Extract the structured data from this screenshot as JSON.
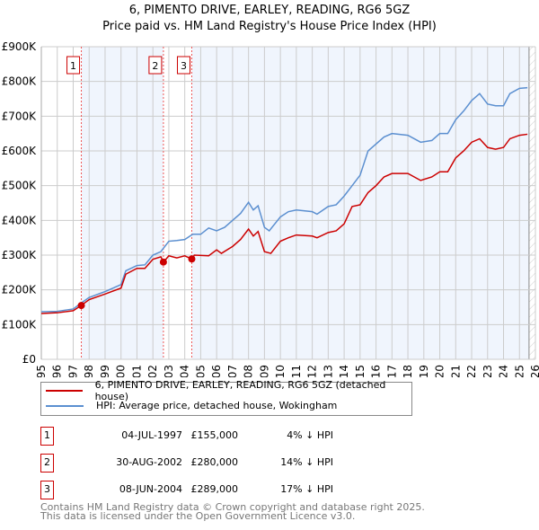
{
  "chart_data": {
    "type": "line",
    "title": "6, PIMENTO DRIVE, EARLEY, READING, RG6 5GZ",
    "subtitle": "Price paid vs. HM Land Registry's House Price Index (HPI)",
    "xlim": [
      1995,
      2026
    ],
    "ylim": [
      0,
      900000
    ],
    "x_ticks": [
      "1995",
      "1996",
      "1997",
      "1998",
      "1999",
      "2000",
      "2001",
      "2002",
      "2003",
      "2004",
      "2005",
      "2006",
      "2007",
      "2008",
      "2009",
      "2010",
      "2011",
      "2012",
      "2013",
      "2014",
      "2015",
      "2016",
      "2017",
      "2018",
      "2019",
      "2020",
      "2021",
      "2022",
      "2023",
      "2024",
      "2025",
      "2026"
    ],
    "y_ticks": [
      {
        "v": 0,
        "l": "£0"
      },
      {
        "v": 100000,
        "l": "£100K"
      },
      {
        "v": 200000,
        "l": "£200K"
      },
      {
        "v": 300000,
        "l": "£300K"
      },
      {
        "v": 400000,
        "l": "£400K"
      },
      {
        "v": 500000,
        "l": "£500K"
      },
      {
        "v": 600000,
        "l": "£600K"
      },
      {
        "v": 700000,
        "l": "£700K"
      },
      {
        "v": 800000,
        "l": "£800K"
      },
      {
        "v": 900000,
        "l": "£900K"
      }
    ],
    "series": [
      {
        "name": "6, PIMENTO DRIVE, EARLEY, READING, RG6 5GZ (detached house)",
        "color": "#cc0000",
        "x": [
          1995,
          1996,
          1997,
          1997.5,
          1998,
          1999,
          2000,
          2000.3,
          2001,
          2001.5,
          2002,
          2002.5,
          2002.67,
          2003,
          2003.5,
          2004,
          2004.44,
          2004.6,
          2005.5,
          2006,
          2006.3,
          2007,
          2007.5,
          2008,
          2008.3,
          2008.6,
          2009,
          2009.4,
          2010,
          2010.5,
          2011,
          2012,
          2012.3,
          2013,
          2013.5,
          2014,
          2014.5,
          2015,
          2015.5,
          2016,
          2016.5,
          2017,
          2018,
          2018.8,
          2019.5,
          2020,
          2020.5,
          2021,
          2021.5,
          2022,
          2022.5,
          2023,
          2023.5,
          2024,
          2024.4,
          2025,
          2025.5
        ],
        "y": [
          132,
          134,
          140,
          155,
          172,
          188,
          205,
          245,
          262,
          262,
          288,
          295,
          280,
          298,
          292,
          298,
          289,
          300,
          298,
          315,
          305,
          325,
          345,
          375,
          355,
          368,
          310,
          305,
          340,
          350,
          358,
          355,
          350,
          365,
          370,
          390,
          440,
          445,
          480,
          500,
          525,
          535,
          535,
          515,
          525,
          540,
          540,
          580,
          600,
          625,
          635,
          610,
          605,
          610,
          635,
          645,
          648
        ]
      },
      {
        "name": "HPI: Average price, detached house, Wokingham",
        "color": "#5b8fd0",
        "x": [
          1995,
          1996,
          1997,
          1997.5,
          1998,
          1999,
          2000,
          2000.3,
          2001,
          2001.5,
          2002,
          2002.5,
          2003,
          2003.5,
          2004,
          2004.5,
          2005,
          2005.5,
          2006,
          2006.5,
          2007,
          2007.5,
          2008,
          2008.3,
          2008.6,
          2009,
          2009.3,
          2010,
          2010.5,
          2011,
          2012,
          2012.3,
          2013,
          2013.5,
          2014,
          2014.5,
          2015,
          2015.5,
          2016.5,
          2017,
          2018,
          2018.8,
          2019.5,
          2020,
          2020.5,
          2021,
          2021.5,
          2022,
          2022.5,
          2023,
          2023.5,
          2024,
          2024.4,
          2025,
          2025.5
        ],
        "y": [
          137,
          138,
          145,
          162,
          178,
          195,
          215,
          255,
          270,
          272,
          300,
          310,
          340,
          342,
          345,
          360,
          360,
          378,
          370,
          380,
          400,
          420,
          452,
          430,
          442,
          380,
          370,
          410,
          425,
          430,
          425,
          418,
          440,
          445,
          470,
          500,
          530,
          600,
          640,
          650,
          645,
          625,
          630,
          650,
          650,
          690,
          715,
          745,
          765,
          735,
          730,
          730,
          765,
          780,
          782
        ]
      }
    ],
    "sales": [
      {
        "n": "1",
        "x": 1997.51,
        "y": 155
      },
      {
        "n": "2",
        "x": 2002.66,
        "y": 280
      },
      {
        "n": "3",
        "x": 2004.44,
        "y": 289
      }
    ]
  },
  "legend": [
    "6, PIMENTO DRIVE, EARLEY, READING, RG6 5GZ (detached house)",
    "HPI: Average price, detached house, Wokingham"
  ],
  "table": [
    {
      "n": "1",
      "date": "04-JUL-1997",
      "price": "£155,000",
      "hpi": "4% ↓ HPI"
    },
    {
      "n": "2",
      "date": "30-AUG-2002",
      "price": "£280,000",
      "hpi": "14% ↓ HPI"
    },
    {
      "n": "3",
      "date": "08-JUN-2004",
      "price": "£289,000",
      "hpi": "17% ↓ HPI"
    }
  ],
  "footer": [
    "Contains HM Land Registry data © Crown copyright and database right 2025.",
    "This data is licensed under the Open Government Licence v3.0."
  ]
}
